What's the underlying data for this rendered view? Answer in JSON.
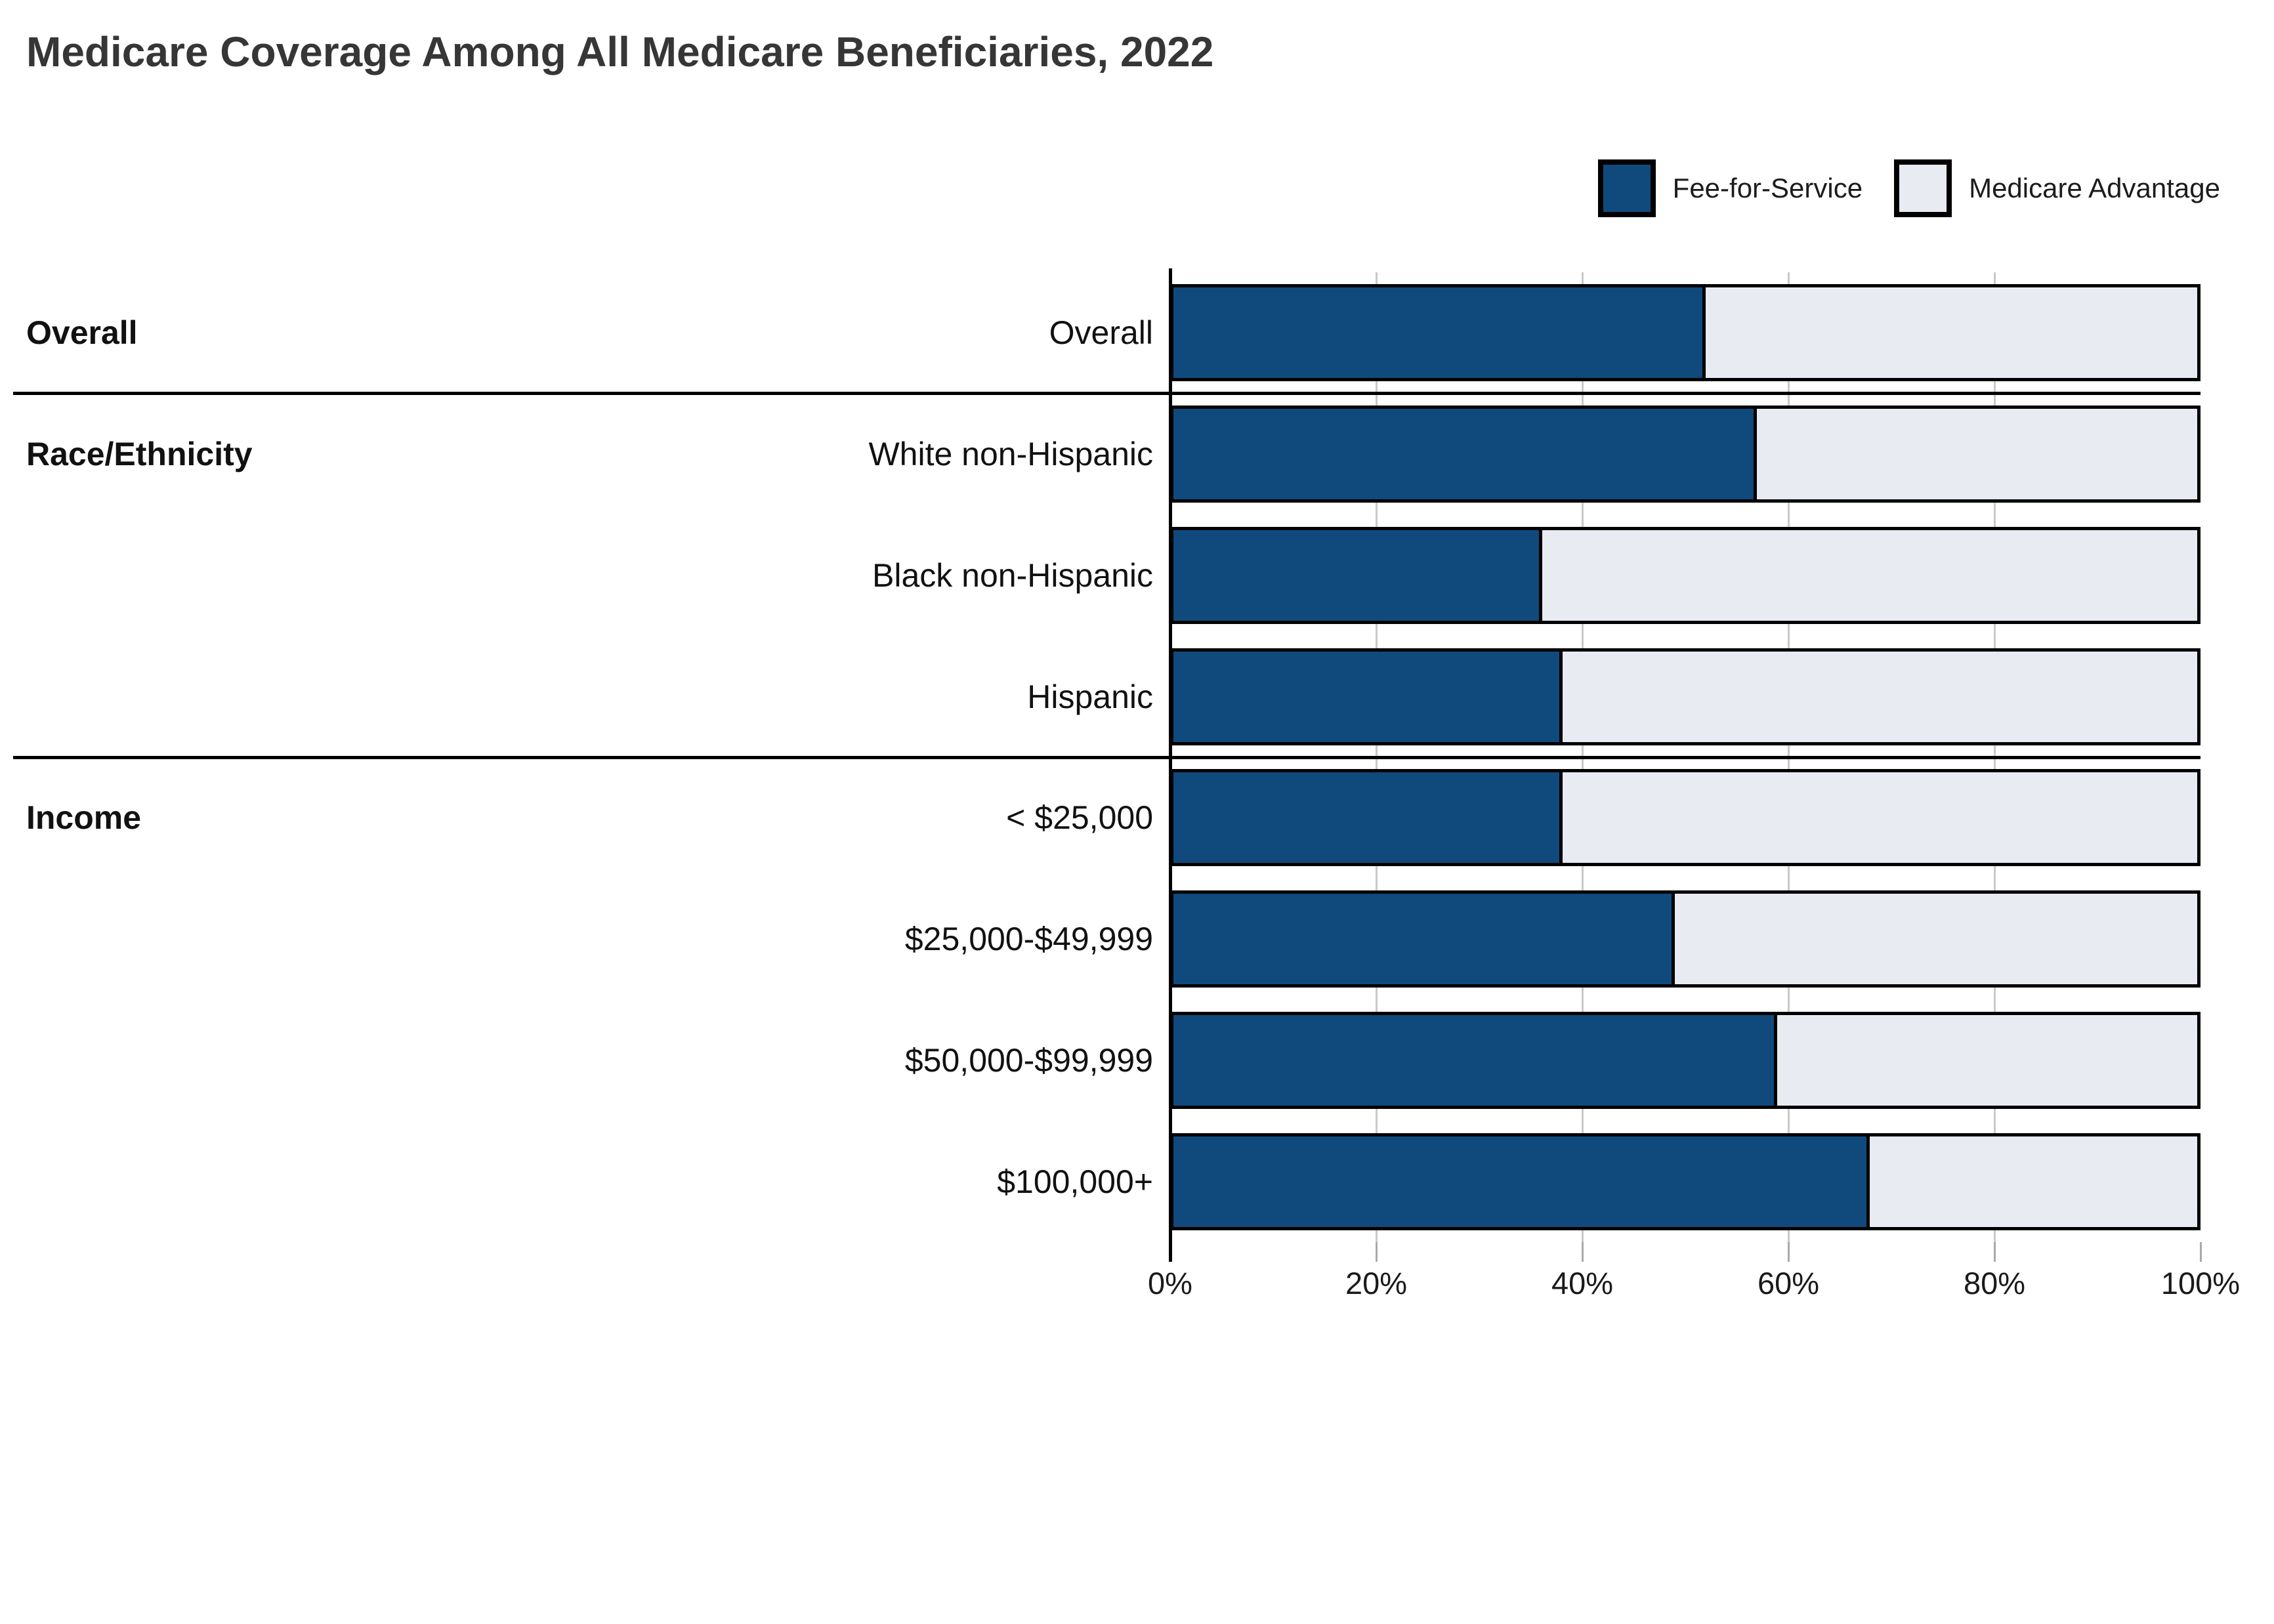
{
  "title": "Medicare Coverage Among All Medicare Beneficiaries, 2022",
  "legend": {
    "items": [
      {
        "label": "Fee-for-Service",
        "color_key": "fee_for_service"
      },
      {
        "label": "Medicare Advantage",
        "color_key": "medicare_advantage"
      }
    ]
  },
  "colors": {
    "fee_for_service": "#104a7d",
    "medicare_advantage": "#e8ebf2",
    "bar_border": "#000000",
    "grid": "#c9c9c9",
    "axis": "#000000",
    "divider": "#000000",
    "tick": "#a9a9a9",
    "title_text": "#363636",
    "label_text": "#111111"
  },
  "chart_data": {
    "type": "bar",
    "stacked": true,
    "orientation": "horizontal",
    "title": "Medicare Coverage Among All Medicare Beneficiaries, 2022",
    "unit": "%",
    "series": [
      "Fee-for-Service",
      "Medicare Advantage"
    ],
    "x_axis": {
      "min": 0,
      "max": 100,
      "ticks": [
        {
          "label": "0%",
          "value": 0
        },
        {
          "label": "20%",
          "value": 20
        },
        {
          "label": "40%",
          "value": 40
        },
        {
          "label": "60%",
          "value": 60
        },
        {
          "label": "80%",
          "value": 80
        },
        {
          "label": "100%",
          "value": 100
        }
      ],
      "grid_values": [
        20,
        40,
        60,
        80
      ]
    },
    "legend_position": "top-right",
    "groups": [
      {
        "header": "Overall",
        "rows": [
          {
            "label": "Overall",
            "fee_for_service": 52,
            "medicare_advantage": 48
          }
        ]
      },
      {
        "header": "Race/Ethnicity",
        "rows": [
          {
            "label": "White non-Hispanic",
            "fee_for_service": 57,
            "medicare_advantage": 43
          },
          {
            "label": "Black non-Hispanic",
            "fee_for_service": 36,
            "medicare_advantage": 64
          },
          {
            "label": "Hispanic",
            "fee_for_service": 38,
            "medicare_advantage": 62
          }
        ]
      },
      {
        "header": "Income",
        "rows": [
          {
            "label": "< $25,000",
            "fee_for_service": 38,
            "medicare_advantage": 62
          },
          {
            "label": "$25,000-$49,999",
            "fee_for_service": 49,
            "medicare_advantage": 51
          },
          {
            "label": "$50,000-$99,999",
            "fee_for_service": 59,
            "medicare_advantage": 41
          },
          {
            "label": "$100,000+",
            "fee_for_service": 68,
            "medicare_advantage": 32
          }
        ]
      }
    ]
  }
}
